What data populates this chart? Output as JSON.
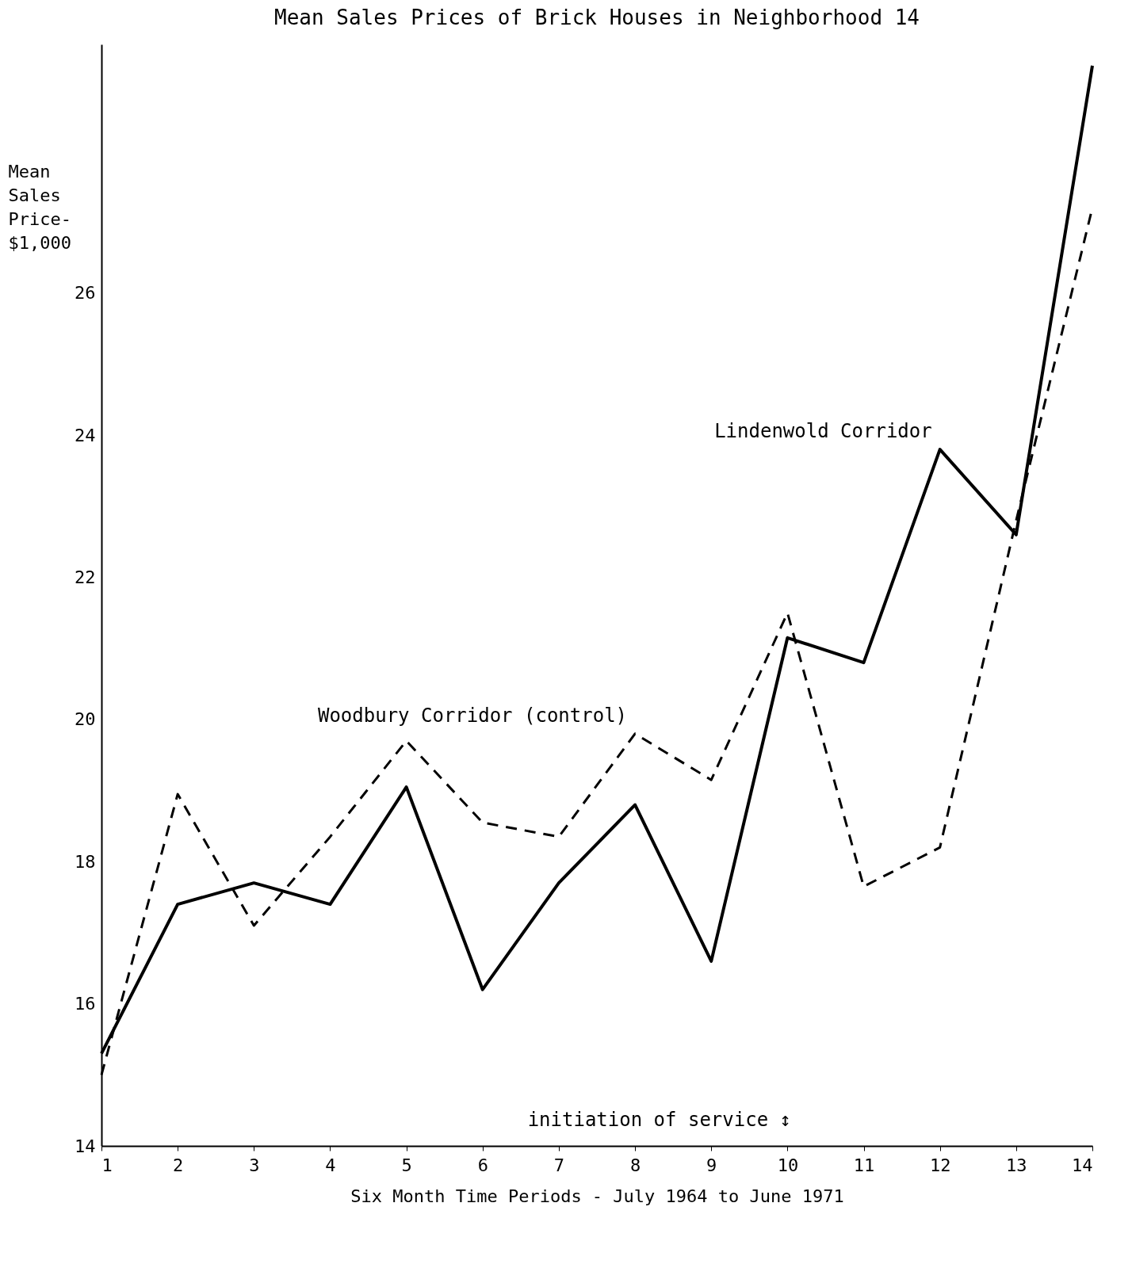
{
  "chart_data": {
    "type": "line",
    "title": "Mean Sales Prices of Brick Houses in Neighborhood 14",
    "xlabel": "Six Month Time Periods - July 1964 to June 1971",
    "ylabel": "Mean Sales Price-$1,000",
    "x": [
      1,
      2,
      3,
      4,
      5,
      6,
      7,
      8,
      9,
      10,
      11,
      12,
      13,
      14
    ],
    "series": [
      {
        "name": "Lindenwold Corridor",
        "color": "#000000",
        "line_style": "solid",
        "values": [
          15.3,
          17.4,
          17.7,
          17.4,
          19.05,
          16.2,
          17.7,
          18.8,
          16.6,
          21.15,
          20.8,
          23.8,
          22.6,
          29.2
        ]
      },
      {
        "name": "Woodbury Corridor (control)",
        "color": "#000000",
        "line_style": "dashed",
        "values": [
          15.0,
          18.95,
          17.1,
          18.35,
          19.7,
          18.55,
          18.35,
          19.8,
          19.15,
          21.5,
          17.65,
          18.2,
          22.8,
          27.2
        ]
      }
    ],
    "xlim": [
      1,
      14
    ],
    "xticks": [
      1,
      2,
      3,
      4,
      5,
      6,
      7,
      8,
      9,
      10,
      11,
      12,
      13,
      14
    ],
    "ylim": [
      14,
      29.5
    ],
    "yticks": [
      14,
      16,
      18,
      20,
      22,
      24,
      26
    ],
    "grid": false,
    "marker": "none",
    "annotations": [
      "initiation of service ↕"
    ]
  }
}
